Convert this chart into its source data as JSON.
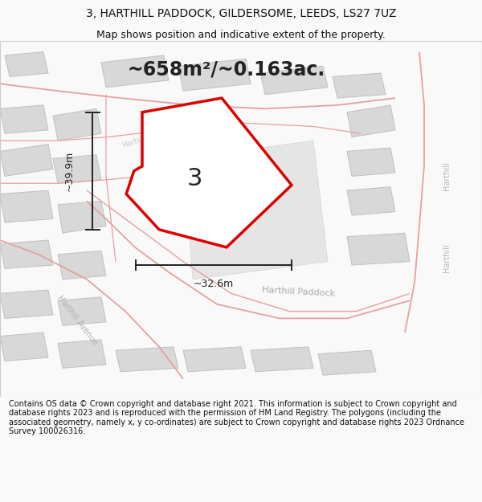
{
  "title": "3, HARTHILL PADDOCK, GILDERSOME, LEEDS, LS27 7UZ",
  "subtitle": "Map shows position and indicative extent of the property.",
  "area_label": "~658m²/~0.163ac.",
  "plot_number": "3",
  "width_label": "~32.6m",
  "height_label": "~39.9m",
  "footer": "Contains OS data © Crown copyright and database right 2021. This information is subject to Crown copyright and database rights 2023 and is reproduced with the permission of HM Land Registry. The polygons (including the associated geometry, namely x, y co-ordinates) are subject to Crown copyright and database rights 2023 Ordnance Survey 100026316.",
  "bg_color": "#f9f9f9",
  "map_bg": "#ffffff",
  "road_color": "#e8a0a0",
  "building_color": "#d8d8d8",
  "building_edge": "#c0c0c0",
  "plot_edge": "#dd0000",
  "dim_color": "#222222",
  "fig_width": 6.0,
  "fig_height": 6.25,
  "title_fontsize": 10,
  "subtitle_fontsize": 9,
  "area_fontsize": 17,
  "plot_num_fontsize": 22,
  "dim_fontsize": 9,
  "street_fontsize": 7,
  "footer_fontsize": 7
}
